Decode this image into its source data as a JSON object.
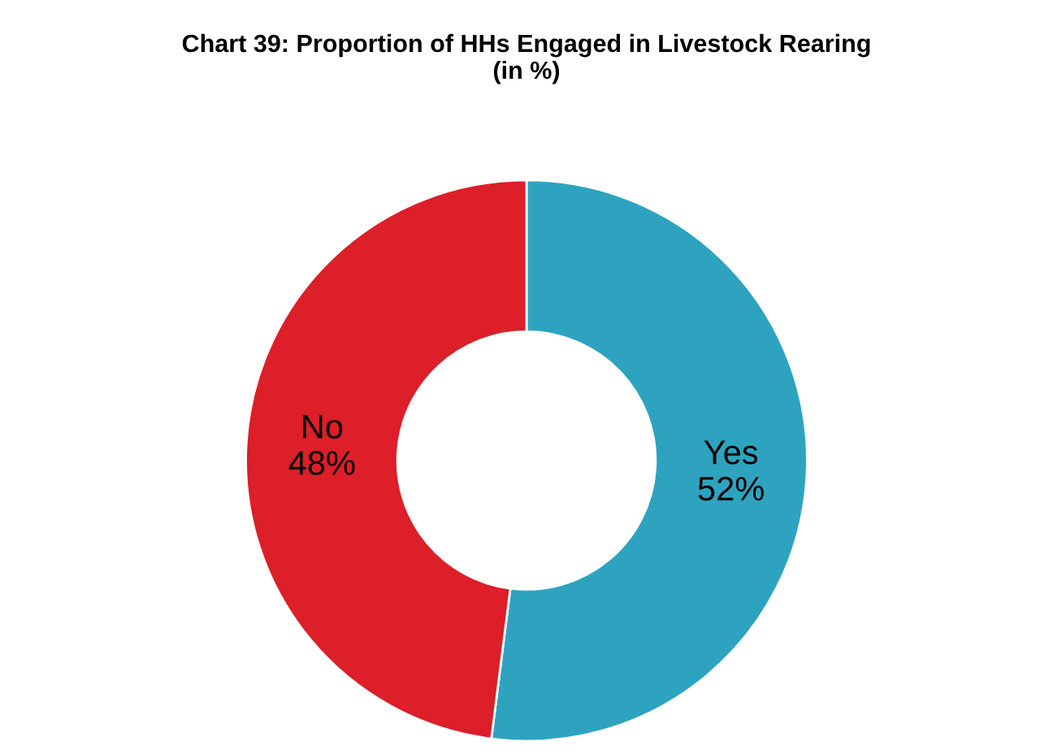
{
  "chart_data": {
    "type": "donut",
    "title": "Chart 39: Proportion of HHs Engaged in Livestock Rearing\n(in %)",
    "categories": [
      "Yes",
      "No"
    ],
    "values": [
      52,
      48
    ],
    "colors": [
      "#2ea3c0",
      "#dc1f28"
    ],
    "value_labels": [
      "52%",
      "48%"
    ],
    "legend": false
  }
}
